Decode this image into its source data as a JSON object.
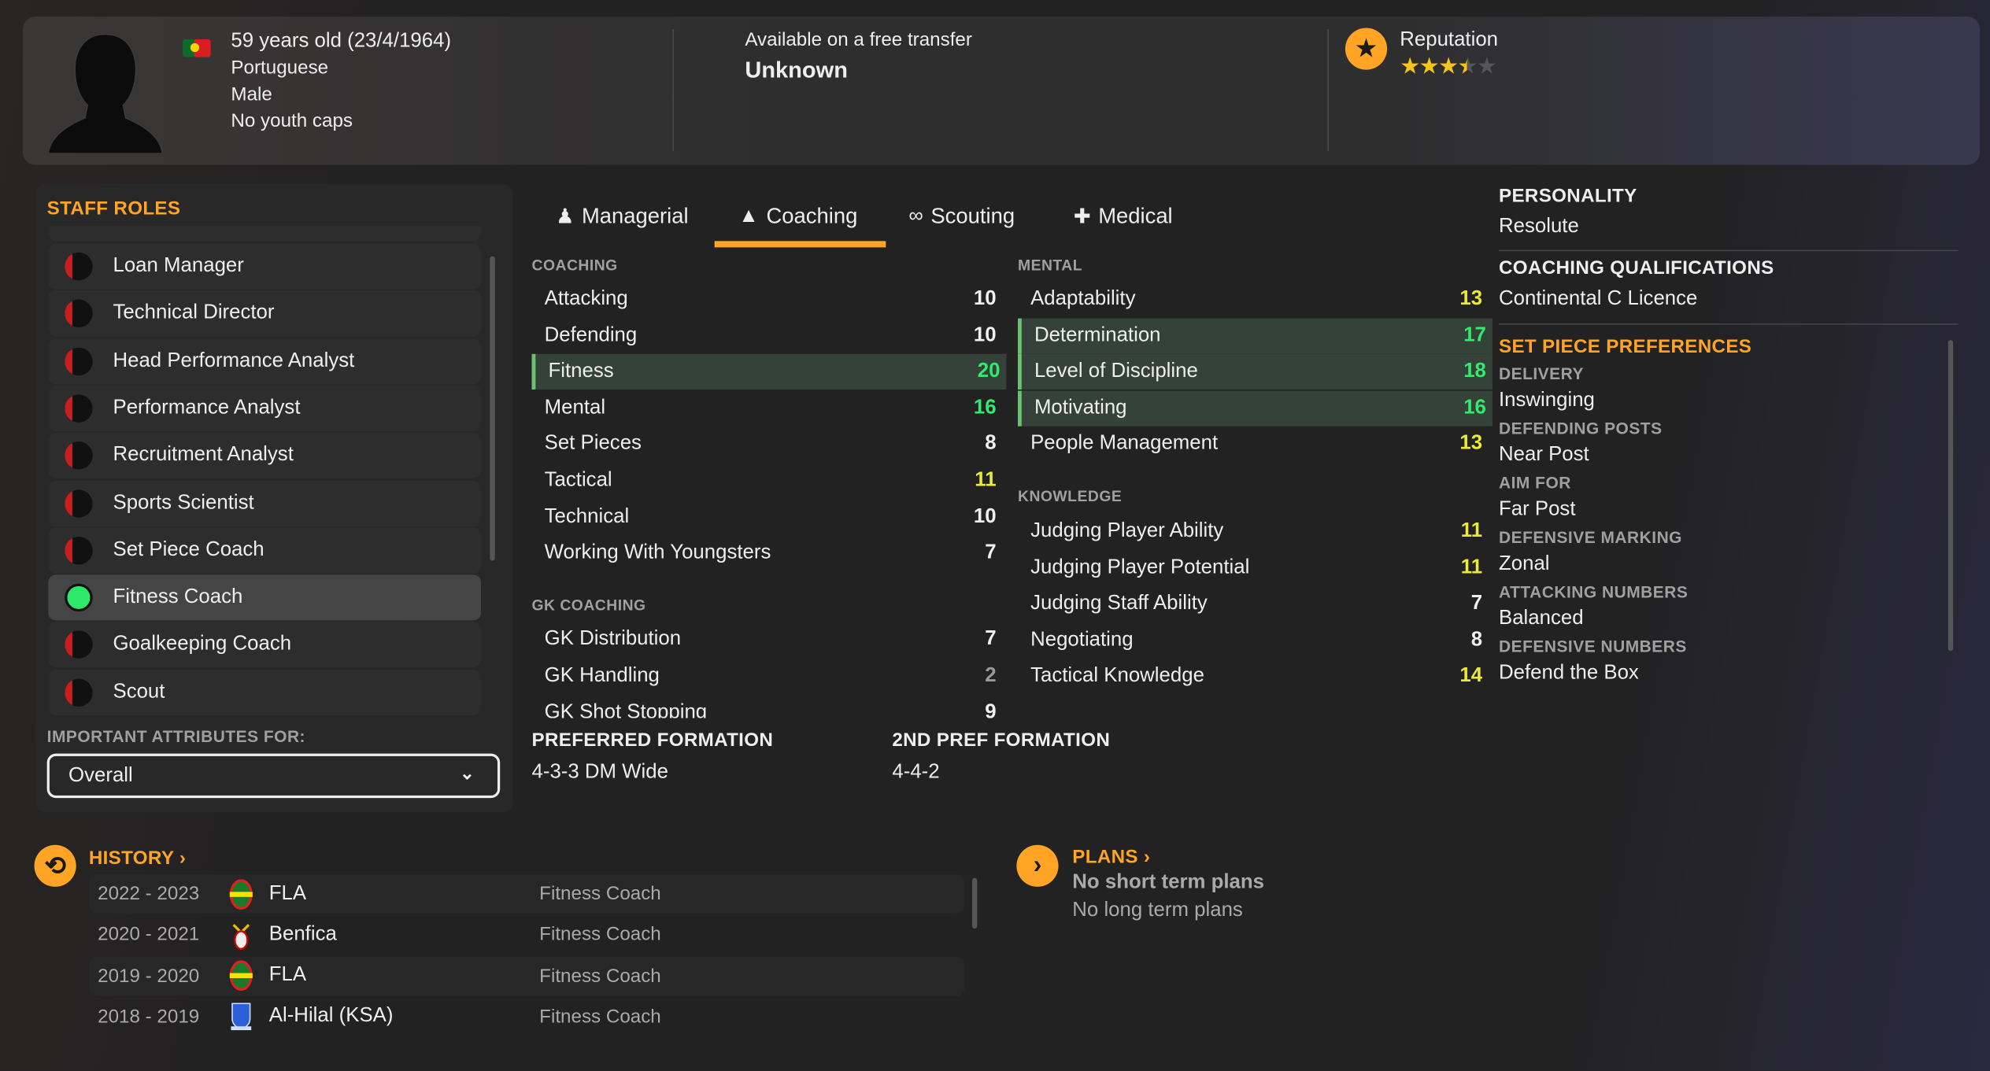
{
  "header": {
    "age_line": "59 years old (23/4/1964)",
    "nationality": "Portuguese",
    "gender": "Male",
    "youth_caps": "No youth caps",
    "transfer_label": "Available on a free transfer",
    "transfer_value": "Unknown",
    "reputation_label": "Reputation",
    "reputation_stars": 3.5,
    "reputation_max": 5
  },
  "staff_roles": {
    "title": "STAFF ROLES",
    "items": [
      {
        "label": "Loan Manager",
        "selected": false
      },
      {
        "label": "Technical Director",
        "selected": false
      },
      {
        "label": "Head Performance Analyst",
        "selected": false
      },
      {
        "label": "Performance Analyst",
        "selected": false
      },
      {
        "label": "Recruitment Analyst",
        "selected": false
      },
      {
        "label": "Sports Scientist",
        "selected": false
      },
      {
        "label": "Set Piece Coach",
        "selected": false
      },
      {
        "label": "Fitness Coach",
        "selected": true
      },
      {
        "label": "Goalkeeping Coach",
        "selected": false
      },
      {
        "label": "Scout",
        "selected": false
      }
    ],
    "important_label": "IMPORTANT ATTRIBUTES FOR:",
    "important_value": "Overall"
  },
  "tabs": [
    {
      "label": "Managerial",
      "icon": "managerial-icon",
      "active": false
    },
    {
      "label": "Coaching",
      "icon": "whistle-icon",
      "active": true
    },
    {
      "label": "Scouting",
      "icon": "binoculars-icon",
      "active": false
    },
    {
      "label": "Medical",
      "icon": "medical-kit-icon",
      "active": false
    }
  ],
  "coaching": {
    "title": "COACHING",
    "items": [
      {
        "name": "Attacking",
        "value": 10
      },
      {
        "name": "Defending",
        "value": 10
      },
      {
        "name": "Fitness",
        "value": 20,
        "highlight": true
      },
      {
        "name": "Mental",
        "value": 16
      },
      {
        "name": "Set Pieces",
        "value": 8
      },
      {
        "name": "Tactical",
        "value": 11
      },
      {
        "name": "Technical",
        "value": 10
      },
      {
        "name": "Working With Youngsters",
        "value": 7
      }
    ]
  },
  "gk_coaching": {
    "title": "GK COACHING",
    "items": [
      {
        "name": "GK Distribution",
        "value": 7
      },
      {
        "name": "GK Handling",
        "value": 2
      },
      {
        "name": "GK Shot Stopping",
        "value": 9
      }
    ]
  },
  "mental": {
    "title": "MENTAL",
    "items": [
      {
        "name": "Adaptability",
        "value": 13
      },
      {
        "name": "Determination",
        "value": 17,
        "highlight": true
      },
      {
        "name": "Level of Discipline",
        "value": 18,
        "highlight": true
      },
      {
        "name": "Motivating",
        "value": 16,
        "highlight": true
      },
      {
        "name": "People Management",
        "value": 13
      }
    ]
  },
  "knowledge": {
    "title": "KNOWLEDGE",
    "items": [
      {
        "name": "Judging Player Ability",
        "value": 11
      },
      {
        "name": "Judging Player Potential",
        "value": 11
      },
      {
        "name": "Judging Staff Ability",
        "value": 7
      },
      {
        "name": "Negotiating",
        "value": 8
      },
      {
        "name": "Tactical Knowledge",
        "value": 14
      }
    ]
  },
  "formations": {
    "preferred_label": "PREFERRED FORMATION",
    "preferred_value": "4-3-3 DM Wide",
    "second_label": "2ND PREF FORMATION",
    "second_value": "4-4-2"
  },
  "right": {
    "personality_label": "PERSONALITY",
    "personality_value": "Resolute",
    "qualifications_label": "COACHING QUALIFICATIONS",
    "qualifications_value": "Continental C Licence",
    "set_piece_title": "SET PIECE PREFERENCES",
    "set_pieces": [
      {
        "label": "DELIVERY",
        "value": "Inswinging"
      },
      {
        "label": "DEFENDING POSTS",
        "value": "Near Post"
      },
      {
        "label": "AIM FOR",
        "value": "Far Post"
      },
      {
        "label": "DEFENSIVE MARKING",
        "value": "Zonal"
      },
      {
        "label": "ATTACKING NUMBERS",
        "value": "Balanced"
      },
      {
        "label": "DEFENSIVE NUMBERS",
        "value": "Defend the Box"
      }
    ]
  },
  "history": {
    "title": "HISTORY",
    "rows": [
      {
        "years": "2022 - 2023",
        "club": "FLA",
        "crest": "fla",
        "role": "Fitness Coach"
      },
      {
        "years": "2020 - 2021",
        "club": "Benfica",
        "crest": "benfica",
        "role": "Fitness Coach"
      },
      {
        "years": "2019 - 2020",
        "club": "FLA",
        "crest": "fla",
        "role": "Fitness Coach"
      },
      {
        "years": "2018 - 2019",
        "club": "Al-Hilal (KSA)",
        "crest": "alhilal",
        "role": "Fitness Coach"
      }
    ]
  },
  "plans": {
    "title": "PLANS",
    "short_term": "No short term plans",
    "long_term": "No long term plans"
  },
  "colors": {
    "accent": "#ffa424",
    "good": "#32ea6c",
    "mid": "#e9ea3a",
    "highlight_row": "#34423a"
  }
}
